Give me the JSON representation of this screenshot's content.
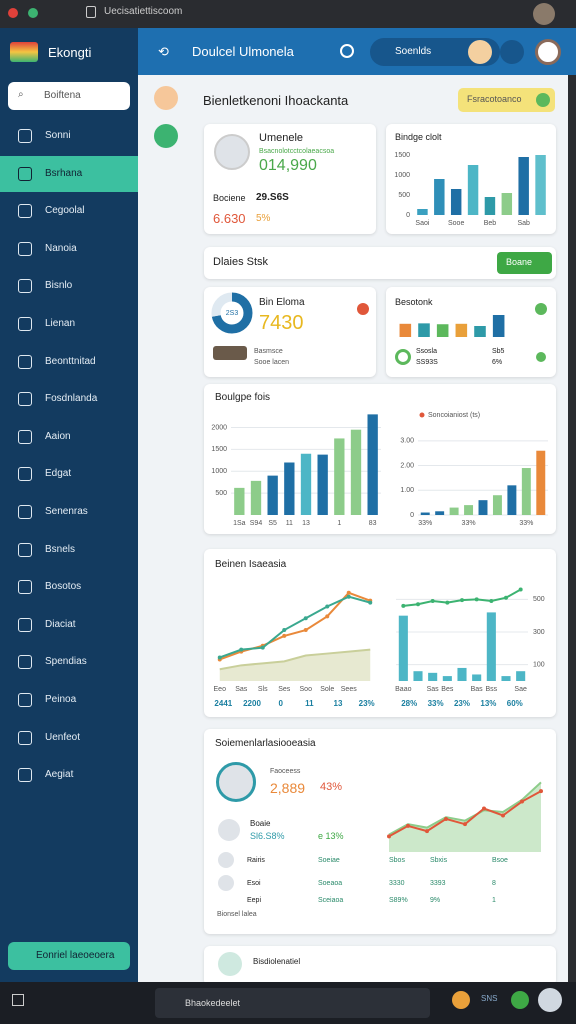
{
  "browser": {
    "tab": "Uecisatiettiscoom"
  },
  "sidebar": {
    "brand": "Ekongti",
    "search": "Boiftena",
    "active": 1,
    "nav": [
      "Sonni",
      "Bsrhana",
      "Cegoolal",
      "Nanoia",
      "Bisnlo",
      "Lienan",
      "Beonttnitad",
      "Fosdnlanda",
      "Aaion",
      "Edgat",
      "Senenras",
      "Bsnels",
      "Bosotos",
      "Diaciat",
      "Spendias",
      "Peinoa",
      "Uenfeot",
      "Aegiat"
    ],
    "footer_button": "Eonriel laeoeoera"
  },
  "topbar": {
    "title": "Doulcel Ulmonela",
    "search": "Soenlds"
  },
  "header": {
    "title": "Bienletkenoni Ihoackanta",
    "button": "Fsracotoanco"
  },
  "card_user": {
    "name": "Umenele",
    "sub": "Bsacnolotcctcolaeacsoa",
    "value": "014,990",
    "label": "Bociene",
    "label_value": "29.S6S",
    "stat": "6.630",
    "stat_pct": "5%"
  },
  "section": {
    "title": "Dlaies Stsk",
    "button": "Boane"
  },
  "card_progress": {
    "title": "Bin Eloma",
    "value": "7430",
    "caption": "Basmsce",
    "caption2": "Sooe lacen"
  },
  "card_small": {
    "left_label": "Ssosla",
    "left_value": "SS93S",
    "right_label": "Sb5",
    "right_value": "6%"
  },
  "profile": {
    "title": "Soiemenlarlasiooeasia",
    "caption": "Faoceess",
    "value": "2,889",
    "pct": "43%",
    "person": "Boaie",
    "person_value": "Sl6.S8%",
    "person_pct": "e 13%"
  },
  "table": {
    "rows": [
      [
        "Rairis",
        "Soeiae",
        "Sbos",
        "Sbxis",
        "Bsoe"
      ],
      [
        "Esoi",
        "Soeaoa",
        "3330",
        "3393",
        "8"
      ],
      [
        "Eepi",
        "Sceiaoa",
        "S89%",
        "9%",
        "1"
      ]
    ],
    "footer": "Bionsel lalea"
  },
  "bottom_card": {
    "title": "Bisdiolenatiel"
  },
  "taskbar": {
    "app": "Bhaokedeelet",
    "right": "SNS"
  },
  "chart_data": [
    {
      "type": "bar",
      "title": "Bindge clolt",
      "categories": [
        "Saoi",
        null,
        "Sooe",
        null,
        "Beb",
        null,
        "Sab",
        null
      ],
      "values": [
        150,
        900,
        650,
        1250,
        450,
        550,
        1450,
        1500
      ],
      "colors": [
        "#3aa0c0",
        "#2f8fb8",
        "#1f6fa5",
        "#4db6c6",
        "#2e9aa8",
        "#8dcc8a",
        "#1f6fa5",
        "#5fbfcc"
      ],
      "ylim": [
        0,
        1700
      ],
      "yticks": [
        0,
        500,
        1000,
        1500
      ]
    },
    {
      "type": "bar",
      "title": "Besotonk",
      "values": [
        60,
        62,
        58,
        60,
        50,
        100
      ],
      "colors": [
        "#e9893a",
        "#2e9aa8",
        "#5cb85c",
        "#e9a03a",
        "#2e9aa8",
        "#1f6fa5"
      ],
      "ylim": [
        0,
        100
      ]
    },
    {
      "type": "bar",
      "title": "Boulgpe fois",
      "categories": [
        "1Sa",
        "S94",
        "S5",
        "11",
        "13",
        null,
        "1",
        null,
        "83"
      ],
      "values": [
        620,
        780,
        900,
        1200,
        1400,
        1380,
        1750,
        1950,
        2300
      ],
      "colors": [
        "#8dcc8a",
        "#8dcc8a",
        "#1f6fa5",
        "#1f6fa5",
        "#4db6c6",
        "#1f6fa5",
        "#8dcc8a",
        "#8dcc8a",
        "#1f6fa5"
      ],
      "ylim": [
        0,
        2400
      ],
      "yticks": [
        500,
        1000,
        1500,
        2000
      ],
      "grid": true
    },
    {
      "type": "bar",
      "subtitle": "Soncoianiost (ts)",
      "categories": [
        "33%",
        null,
        null,
        "33%",
        null,
        null,
        null,
        "33%",
        null
      ],
      "values": [
        0.1,
        0.15,
        0.3,
        0.4,
        0.6,
        0.8,
        1.2,
        1.9,
        2.6
      ],
      "colors": [
        "#1f6fa5",
        "#1f6fa5",
        "#8dcc8a",
        "#8dcc8a",
        "#1f6fa5",
        "#8dcc8a",
        "#1f6fa5",
        "#8dcc8a",
        "#e9893a"
      ],
      "ylim": [
        0,
        3.6
      ],
      "yticks": [
        0,
        {
          "value": 1,
          "label": "1.00"
        },
        {
          "value": 2,
          "label": "2.00"
        },
        {
          "value": 3,
          "label": "3.00"
        }
      ],
      "grid": true
    },
    {
      "type": "line",
      "title": "Beinen Isaeasia",
      "categories": [
        "Eeo",
        "Sas",
        "Sls",
        "Ses",
        "Soo",
        "Sole",
        "Sees",
        null
      ],
      "series": [
        {
          "color": "#c9cf9a",
          "area": true,
          "values": [
            0.6,
            0.8,
            0.9,
            1.0,
            1.3,
            1.4,
            1.5,
            1.6
          ]
        },
        {
          "color": "#e9893a",
          "values": [
            1.1,
            1.5,
            1.8,
            2.3,
            2.6,
            3.3,
            4.5,
            4.1
          ]
        },
        {
          "color": "#3aa88f",
          "values": [
            1.2,
            1.6,
            1.7,
            2.6,
            3.2,
            3.8,
            4.3,
            4.0
          ]
        }
      ],
      "ylim": [
        0,
        5
      ],
      "axis_notes": [
        "2441",
        "2200",
        "0",
        "11",
        "13",
        "23%"
      ]
    },
    {
      "type": "bar",
      "categories": [
        "Baao",
        null,
        "Sas",
        "Bes",
        null,
        "Bas",
        "Bss",
        null,
        "Sae"
      ],
      "series": [
        {
          "type": "bar",
          "color": "#4db6c6",
          "values": [
            400,
            60,
            50,
            30,
            80,
            40,
            420,
            30,
            60
          ]
        },
        {
          "type": "line",
          "color": "#3cb371",
          "values": [
            460,
            470,
            490,
            480,
            495,
            500,
            490,
            510,
            560
          ]
        }
      ],
      "ylim": [
        0,
        600
      ],
      "yticks": [
        100,
        300,
        500
      ],
      "y_axis_side": "right",
      "grid": true,
      "axis_notes": [
        "28%",
        "33%",
        "23%",
        "13%",
        "60%"
      ]
    },
    {
      "type": "line",
      "x": [
        1,
        2,
        3,
        4,
        5,
        6,
        7,
        8,
        9
      ],
      "xlim": [
        1,
        9
      ],
      "ylim": [
        0,
        10
      ],
      "series": [
        {
          "color": "#8dcc8a",
          "area": true,
          "values": [
            2,
            3.2,
            2.8,
            4,
            3.6,
            4.8,
            4.6,
            6,
            8
          ]
        },
        {
          "color": "#e0573a",
          "values": [
            1.8,
            3,
            2.4,
            3.8,
            3.2,
            5,
            4.2,
            5.8,
            7
          ]
        }
      ]
    },
    {
      "type": "pie",
      "values": [
        72,
        28
      ],
      "colors": [
        "#1f6fa5",
        "#dfe9f1"
      ],
      "inner": true,
      "center_label": "2S3"
    }
  ]
}
